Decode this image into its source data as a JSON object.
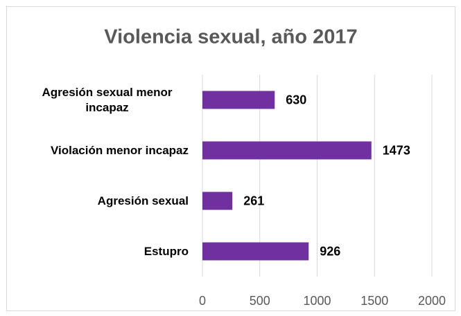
{
  "chart_data": {
    "type": "bar",
    "orientation": "horizontal",
    "title": "Violencia sexual, año 2017",
    "categories": [
      "Agresión sexual menor incapaz",
      "Violación menor incapaz",
      "Agresión sexual",
      "Estupro"
    ],
    "values": [
      630,
      1473,
      261,
      926
    ],
    "color": "#7030a0",
    "xlim": [
      0,
      2000
    ],
    "xticks": [
      0,
      500,
      1000,
      1500,
      2000
    ],
    "grid": true
  }
}
